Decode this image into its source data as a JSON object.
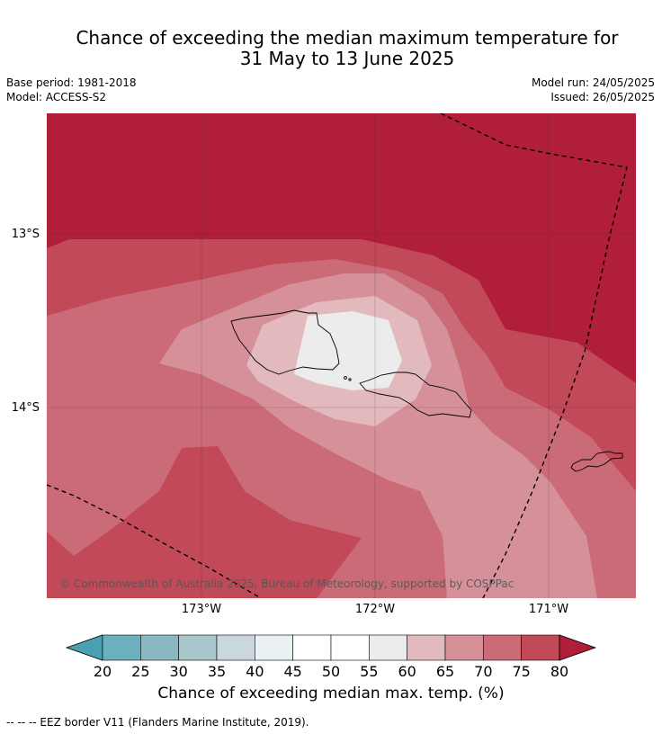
{
  "title": {
    "line1": "Chance of exceeding the median maximum temperature for",
    "line2": "31 May to 13 June 2025"
  },
  "meta": {
    "base_period": "Base period: 1981-2018",
    "model": "Model: ACCESS-S2",
    "model_run": "Model run: 24/05/2025",
    "issued": "Issued: 26/05/2025"
  },
  "axes": {
    "lat_labels": [
      "13°S",
      "14°S"
    ],
    "lon_labels": [
      "173°W",
      "172°W",
      "171°W"
    ]
  },
  "copyright": "© Commonwealth of Australia 2025, Bureau of Meteorology, supported by COSPPac",
  "colorbar": {
    "ticks": [
      "20",
      "25",
      "30",
      "35",
      "40",
      "45",
      "50",
      "55",
      "60",
      "65",
      "70",
      "75",
      "80"
    ],
    "colors": [
      "#4aa0b0",
      "#6cb0c0",
      "#8bb7c3",
      "#a9c6cb",
      "#cad8dd",
      "#eaf1f2",
      "#ffffff",
      "#ffffff",
      "#ececed",
      "#e2b9bd",
      "#d5909a",
      "#cb6b78",
      "#c24957",
      "#b01e3a"
    ],
    "label": "Chance of exceeding median max. temp. (%)"
  },
  "footnote": "--  --  -- EEZ border V11 (Flanders Marine Institute, 2019)."
}
